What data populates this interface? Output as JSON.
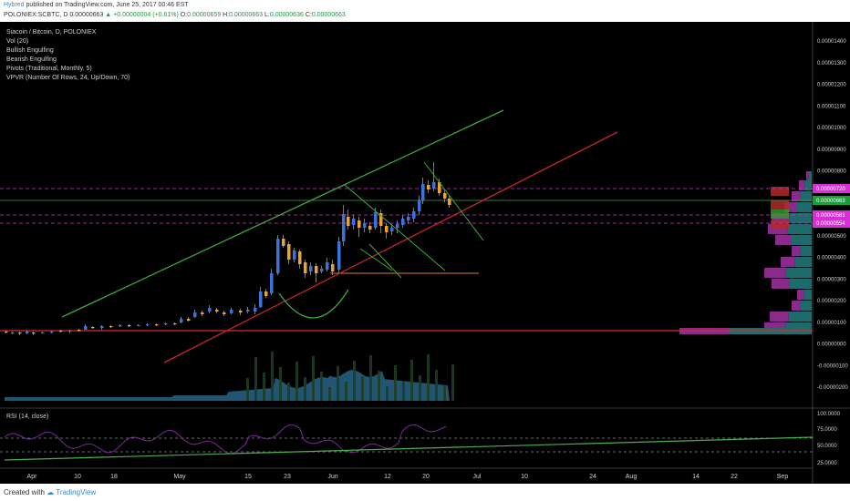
{
  "header": {
    "author": "Hybred",
    "published_text": "published on TradingView.com, June 25, 2017 00:46 EST",
    "symbol": "POLONIEX:SCBTC, D",
    "last": "0.00000663",
    "arrow": "▲",
    "change": "+0.00000004 (+0.61%)",
    "ohlc": {
      "o_label": "O:",
      "o": "0.00000659",
      "h_label": "H:",
      "h": "0.00000663",
      "l_label": "L:",
      "l": "0.00000636",
      "c_label": "C:",
      "c": "0.00000663"
    }
  },
  "legend": {
    "title": "Siacoin / Bitcoin, D, POLONIEX",
    "indicators": [
      "Vol (20)",
      "Bullish Engulfing",
      "Bearish Engulfing",
      "Pivots (Traditional, Monthly, 5)",
      "VPVR (Number Of Rows, 24, Up/Down, 70)"
    ],
    "rsi": "RSI (14, close)"
  },
  "footer": {
    "created_with": "Created with",
    "brand": "TradingView"
  },
  "colors": {
    "background": "#000000",
    "up": "#3b74d9",
    "down": "#e8a23a",
    "trend_green": "#3fa83a",
    "trend_red": "#c8262c",
    "highlight_magenta": "#d62fd6",
    "volume_fill": "#2b6a8f",
    "rsi_line": "#7b2a9a"
  },
  "chart_data": {
    "type": "candlestick",
    "title": "Siacoin / Bitcoin, D, POLONIEX",
    "y_price_ticks": [
      "0.00001400",
      "0.00001300",
      "0.00001200",
      "0.00001100",
      "0.00001000",
      "0.00000900",
      "0.00000800",
      "0.00000500",
      "0.00000400",
      "0.00000300",
      "0.00000200",
      "0.00000100",
      "0.00000000",
      "-0.00000100",
      "-0.00000200"
    ],
    "price_labels": [
      {
        "value": "0.00000720",
        "color": "#d62fd6"
      },
      {
        "value": "0.00000663",
        "color": "#1a9b3c"
      },
      {
        "value": "0.00000581",
        "color": "#d62fd6"
      },
      {
        "value": "0.00000554",
        "color": "#d62fd6"
      }
    ],
    "x_ticks": [
      "Apr",
      "10",
      "18",
      "May",
      "15",
      "23",
      "Jun",
      "12",
      "20",
      "Jul",
      "10",
      "24",
      "Aug",
      "14",
      "22",
      "Sep"
    ],
    "rsi_ticks": [
      "100.0000",
      "75.0000",
      "50.0000",
      "25.0000"
    ],
    "ylim": [
      -2.6e-06,
      1.47e-05
    ]
  }
}
